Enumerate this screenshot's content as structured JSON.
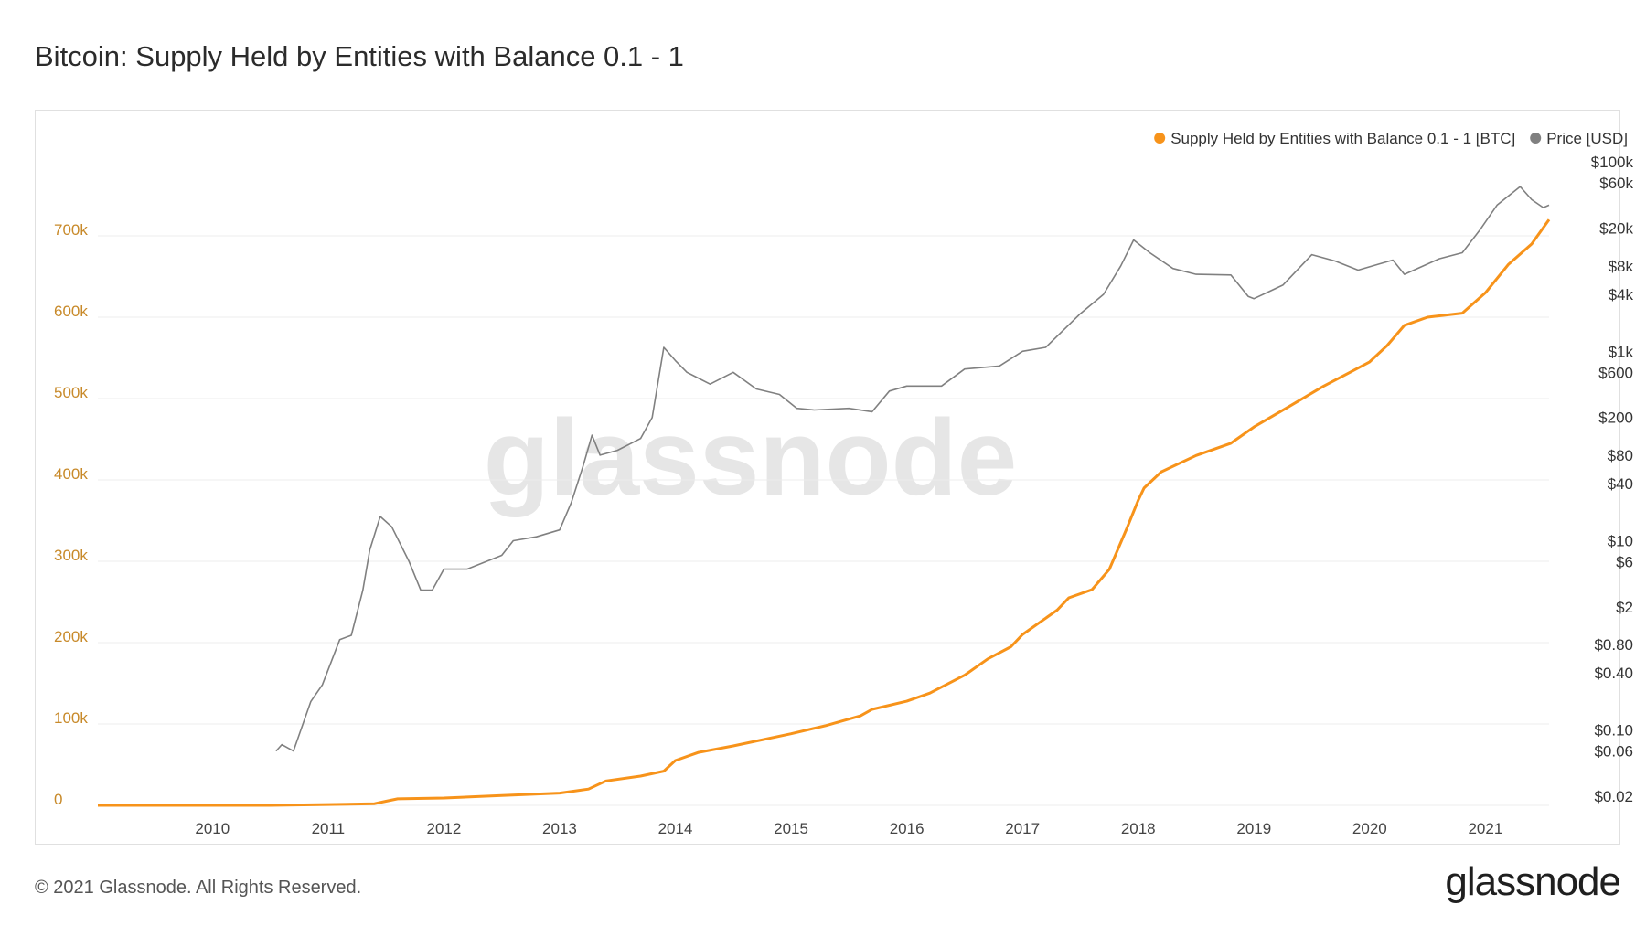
{
  "title": "Bitcoin: Supply Held by Entities with Balance 0.1 - 1",
  "watermark": "glassnode",
  "footer": {
    "copyright": "© 2021 Glassnode. All Rights Reserved.",
    "logo_text": "glassnode"
  },
  "colors": {
    "supply": "#f7931a",
    "price": "#808080",
    "left_axis_text": "#c88a2a",
    "grid": "#ececec",
    "watermark": "#e6e6e6"
  },
  "chart_data": {
    "type": "line",
    "legend_position": "top-right",
    "grid": true,
    "xlabel": "",
    "x_ticks": [
      "2010",
      "2011",
      "2012",
      "2013",
      "2014",
      "2015",
      "2016",
      "2017",
      "2018",
      "2019",
      "2020",
      "2021"
    ],
    "x_range": [
      2009.01,
      2021.55
    ],
    "y_left": {
      "ticks": [
        "0",
        "100k",
        "200k",
        "300k",
        "400k",
        "500k",
        "600k",
        "700k"
      ],
      "tick_values": [
        0,
        100000,
        200000,
        300000,
        400000,
        500000,
        600000,
        700000
      ],
      "range": [
        0,
        800000
      ]
    },
    "y_right": {
      "scale": "log",
      "ticks": [
        "$0.02",
        "$0.06",
        "$0.10",
        "$0.40",
        "$0.80",
        "$2",
        "$6",
        "$10",
        "$40",
        "$80",
        "$200",
        "$600",
        "$1k",
        "$4k",
        "$8k",
        "$20k",
        "$60k",
        "$100k"
      ],
      "tick_values": [
        0.02,
        0.06,
        0.1,
        0.4,
        0.8,
        2,
        6,
        10,
        40,
        80,
        200,
        600,
        1000,
        4000,
        8000,
        20000,
        60000,
        100000
      ],
      "range": [
        0.016,
        120000
      ]
    },
    "series": [
      {
        "name": "Supply Held by Entities with Balance 0.1 - 1 [BTC]",
        "axis": "left",
        "x": [
          2009.01,
          2010.5,
          2011.0,
          2011.4,
          2011.5,
          2011.6,
          2012.0,
          2012.5,
          2013.0,
          2013.25,
          2013.4,
          2013.7,
          2013.9,
          2014.0,
          2014.2,
          2014.5,
          2015.0,
          2015.3,
          2015.6,
          2015.7,
          2016.0,
          2016.2,
          2016.5,
          2016.7,
          2016.9,
          2017.0,
          2017.3,
          2017.4,
          2017.6,
          2017.75,
          2017.9,
          2018.0,
          2018.05,
          2018.2,
          2018.5,
          2018.8,
          2019.0,
          2019.3,
          2019.6,
          2019.8,
          2020.0,
          2020.15,
          2020.3,
          2020.5,
          2020.8,
          2021.0,
          2021.2,
          2021.4,
          2021.55
        ],
        "values": [
          0,
          0,
          1000,
          2000,
          5000,
          8000,
          9000,
          12000,
          15000,
          20000,
          30000,
          36000,
          42000,
          55000,
          65000,
          73000,
          88000,
          98000,
          110000,
          118000,
          128000,
          138000,
          160000,
          180000,
          195000,
          210000,
          240000,
          255000,
          265000,
          290000,
          340000,
          375000,
          390000,
          410000,
          430000,
          445000,
          465000,
          490000,
          515000,
          530000,
          545000,
          565000,
          590000,
          600000,
          605000,
          630000,
          665000,
          690000,
          720000
        ]
      },
      {
        "name": "Price [USD]",
        "axis": "right",
        "x": [
          2010.55,
          2010.6,
          2010.7,
          2010.85,
          2010.95,
          2011.1,
          2011.2,
          2011.3,
          2011.36,
          2011.45,
          2011.55,
          2011.7,
          2011.8,
          2011.9,
          2012.0,
          2012.2,
          2012.5,
          2012.6,
          2012.8,
          2013.0,
          2013.1,
          2013.2,
          2013.28,
          2013.35,
          2013.5,
          2013.7,
          2013.8,
          2013.9,
          2014.0,
          2014.1,
          2014.3,
          2014.5,
          2014.7,
          2014.9,
          2015.05,
          2015.2,
          2015.5,
          2015.7,
          2015.85,
          2016.0,
          2016.3,
          2016.5,
          2016.8,
          2017.0,
          2017.2,
          2017.5,
          2017.7,
          2017.85,
          2017.96,
          2018.1,
          2018.3,
          2018.5,
          2018.8,
          2018.95,
          2019.0,
          2019.25,
          2019.5,
          2019.7,
          2019.9,
          2020.1,
          2020.2,
          2020.3,
          2020.6,
          2020.8,
          2020.95,
          2021.1,
          2021.3,
          2021.4,
          2021.5,
          2021.55
        ],
        "values": [
          0.06,
          0.07,
          0.06,
          0.2,
          0.3,
          0.9,
          1,
          3,
          8,
          18,
          14,
          6,
          3,
          3,
          5,
          5,
          7,
          10,
          11,
          13,
          25,
          60,
          130,
          80,
          90,
          120,
          200,
          1100,
          800,
          600,
          450,
          600,
          400,
          350,
          250,
          240,
          250,
          230,
          380,
          430,
          430,
          650,
          700,
          1000,
          1100,
          2500,
          4000,
          8000,
          15000,
          11000,
          7500,
          6500,
          6400,
          3800,
          3600,
          5000,
          10500,
          9000,
          7200,
          8500,
          9200,
          6500,
          9500,
          11000,
          19000,
          35000,
          55000,
          40000,
          33000,
          35000
        ]
      }
    ]
  }
}
